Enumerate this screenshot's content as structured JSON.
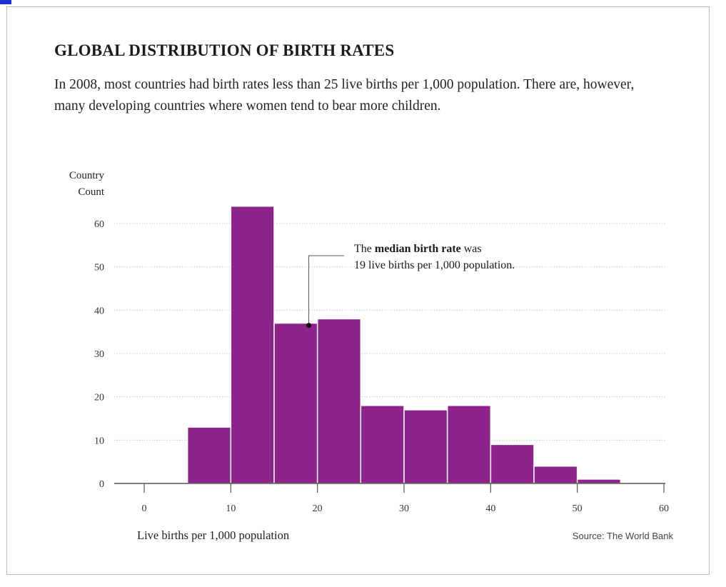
{
  "title": "GLOBAL DISTRIBUTION OF BIRTH RATES",
  "subtitle": "In 2008, most countries had birth rates less than 25 live births per 1,000 population. There are, however, many developing countries where women tend to bear more children.",
  "source": "Source: The World Bank",
  "annotation": {
    "prefix": "The ",
    "bold": "median birth rate",
    "suffix": " was",
    "line2": "19 live births per 1,000 population."
  },
  "chart_data": {
    "type": "bar",
    "subtype": "histogram",
    "title": "GLOBAL DISTRIBUTION OF BIRTH RATES",
    "xlabel": "Live births per 1,000 population",
    "ylabel": "Country Count",
    "ylabel_lines": [
      "Country",
      "Count"
    ],
    "bins": [
      [
        5,
        10
      ],
      [
        10,
        15
      ],
      [
        15,
        20
      ],
      [
        20,
        25
      ],
      [
        25,
        30
      ],
      [
        30,
        35
      ],
      [
        35,
        40
      ],
      [
        40,
        45
      ],
      [
        45,
        50
      ],
      [
        50,
        55
      ]
    ],
    "values": [
      13,
      64,
      37,
      38,
      18,
      17,
      18,
      9,
      4,
      1
    ],
    "xlim": [
      0,
      60
    ],
    "ylim": [
      0,
      65
    ],
    "xticks": [
      0,
      10,
      20,
      30,
      40,
      50,
      60
    ],
    "xtick_labels": [
      "0",
      "10",
      "20",
      "30",
      "40",
      "50",
      "60"
    ],
    "yticks": [
      0,
      10,
      20,
      30,
      40,
      50,
      60
    ],
    "ytick_labels": [
      "0",
      "10",
      "20",
      "30",
      "40",
      "50",
      "60"
    ],
    "grid": "horizontal-dotted",
    "bar_color": "#8e248b",
    "median": 19,
    "median_marker_y": 36.5
  }
}
